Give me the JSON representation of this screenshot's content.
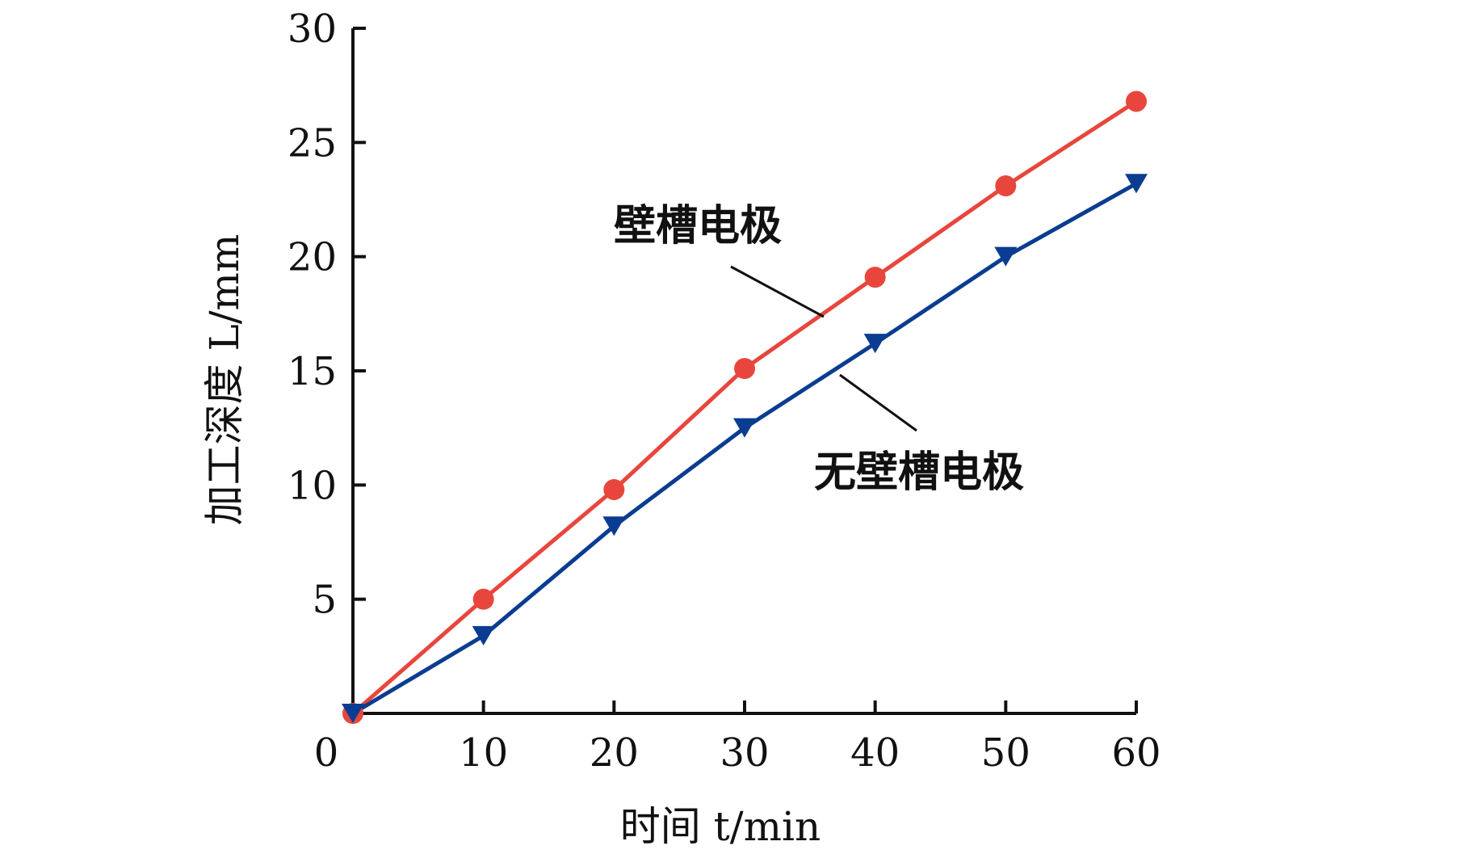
{
  "chart_data": {
    "type": "line",
    "title": "",
    "xlabel": "时间 t/min",
    "ylabel": "加工深度 L/mm",
    "x": [
      0,
      10,
      20,
      30,
      40,
      50,
      60
    ],
    "xlim": [
      0,
      60
    ],
    "ylim": [
      0,
      30
    ],
    "x_ticks": [
      "0",
      "10",
      "20",
      "30",
      "40",
      "50",
      "60"
    ],
    "y_ticks": [
      "5",
      "10",
      "15",
      "20",
      "25",
      "30"
    ],
    "grid": false,
    "series": [
      {
        "name": "壁槽电极",
        "marker": "circle",
        "color": "#e8463c",
        "values": [
          0,
          5.0,
          9.8,
          15.1,
          19.1,
          23.1,
          26.8
        ]
      },
      {
        "name": "无壁槽电极",
        "marker": "triangle-down",
        "color": "#0a3d91",
        "values": [
          0,
          3.4,
          8.2,
          12.5,
          16.2,
          20.0,
          23.2
        ]
      }
    ],
    "annotations": [
      {
        "text": "壁槽电极",
        "series": 0
      },
      {
        "text": "无壁槽电极",
        "series": 1
      }
    ]
  }
}
